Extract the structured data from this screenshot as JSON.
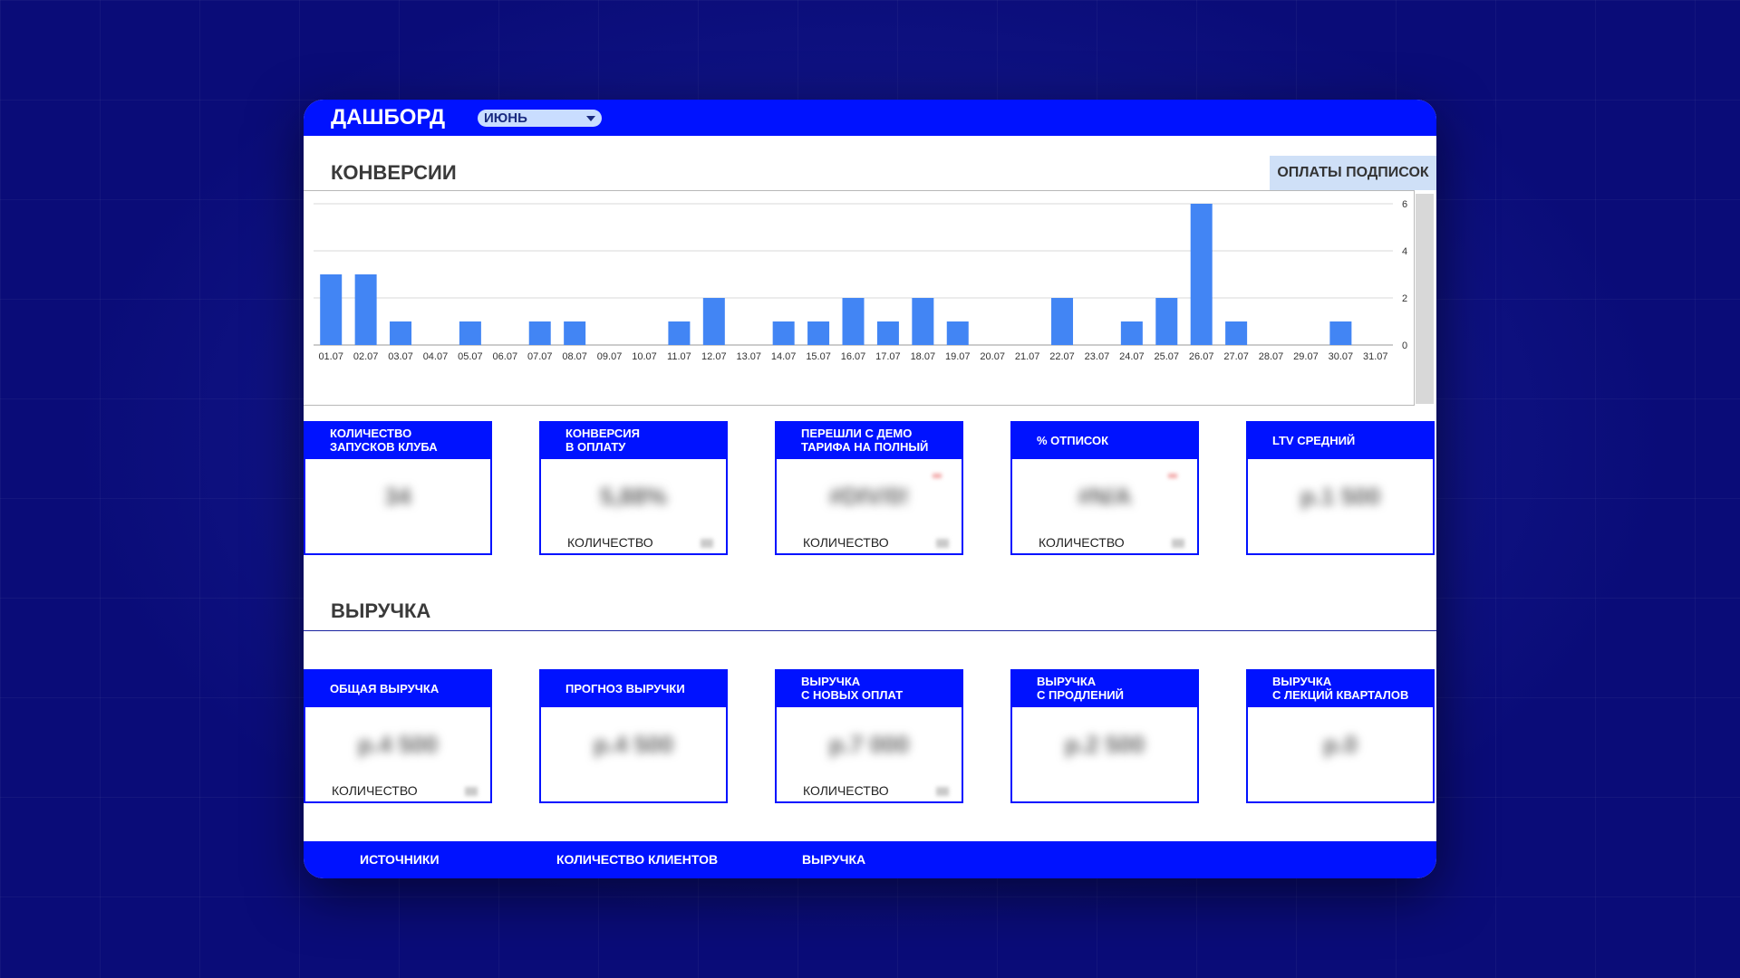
{
  "header": {
    "title": "ДАШБОРД",
    "month": "ИЮНЬ"
  },
  "conversions": {
    "title": "КОНВЕРСИИ",
    "subscriptions_button": "ОПЛАТЫ ПОДПИСОК"
  },
  "chart_data": {
    "type": "bar",
    "categories": [
      "01.07",
      "02.07",
      "03.07",
      "04.07",
      "05.07",
      "06.07",
      "07.07",
      "08.07",
      "09.07",
      "10.07",
      "11.07",
      "12.07",
      "13.07",
      "14.07",
      "15.07",
      "16.07",
      "17.07",
      "18.07",
      "19.07",
      "20.07",
      "21.07",
      "22.07",
      "23.07",
      "24.07",
      "25.07",
      "26.07",
      "27.07",
      "28.07",
      "29.07",
      "30.07",
      "31.07"
    ],
    "values": [
      3,
      3,
      1,
      0,
      1,
      0,
      1,
      1,
      0,
      0,
      1,
      2,
      0,
      1,
      1,
      2,
      1,
      2,
      1,
      0,
      0,
      2,
      0,
      1,
      2,
      6,
      1,
      0,
      0,
      1,
      0
    ],
    "ylim": [
      0,
      6
    ],
    "yticks": [
      "0",
      "2",
      "4",
      "6"
    ],
    "grid": true,
    "bar_color": "#4285f4"
  },
  "conversion_cards": [
    {
      "title": "КОЛИЧЕСТВО\nЗАПУСКОВ КЛУБА",
      "value": "34",
      "sub": ""
    },
    {
      "title": "КОНВЕРСИЯ\nВ ОПЛАТУ",
      "value": "5,88%",
      "sub": "КОЛИЧЕСТВО"
    },
    {
      "title": "ПЕРЕШЛИ С ДЕМО\nТАРИФА НА ПОЛНЫЙ",
      "value": "#DIV/0!",
      "sub": "КОЛИЧЕСТВО"
    },
    {
      "title": "% ОТПИСОК",
      "value": "#N/A",
      "sub": "КОЛИЧЕСТВО"
    },
    {
      "title": "LTV СРЕДНИЙ",
      "value": "р.1 500",
      "sub": ""
    }
  ],
  "revenue": {
    "title": "ВЫРУЧКА"
  },
  "revenue_cards": [
    {
      "title": "ОБЩАЯ ВЫРУЧКА",
      "value": "р.4 500",
      "sub": "КОЛИЧЕСТВО"
    },
    {
      "title": "ПРОГНОЗ ВЫРУЧКИ",
      "value": "р.4 500",
      "sub": ""
    },
    {
      "title": "ВЫРУЧКА\nС НОВЫХ ОПЛАТ",
      "value": "р.7 000",
      "sub": "КОЛИЧЕСТВО"
    },
    {
      "title": "ВЫРУЧКА\nС ПРОДЛЕНИЙ",
      "value": "р.2 500",
      "sub": ""
    },
    {
      "title": "ВЫРУЧКА\nС ЛЕКЦИЙ КВАРТАЛОВ",
      "value": "р.0",
      "sub": ""
    }
  ],
  "bottom_tabs": [
    "ИСТОЧНИКИ",
    "КОЛИЧЕСТВО КЛИЕНТОВ",
    "ВЫРУЧКА"
  ]
}
